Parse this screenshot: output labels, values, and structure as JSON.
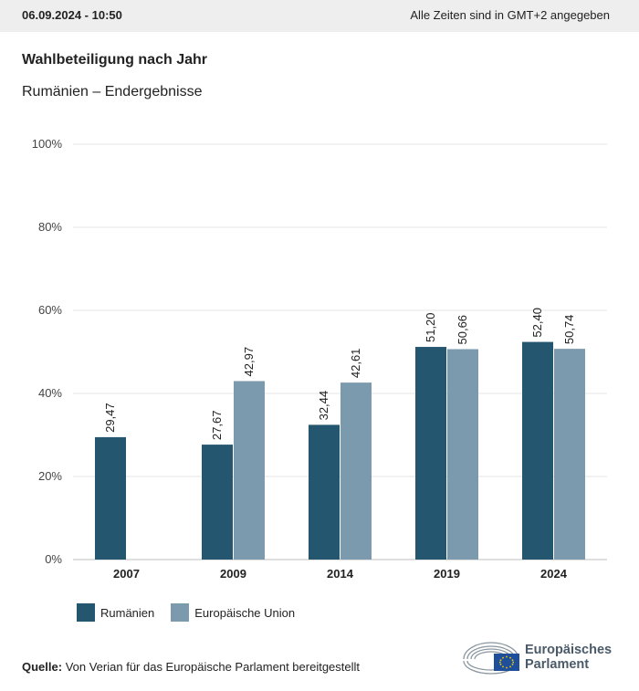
{
  "header": {
    "date": "06.09.2024 - 10:50",
    "timezone_note": "Alle Zeiten sind in GMT+2 angegeben"
  },
  "title": "Wahlbeteiligung nach Jahr",
  "subtitle": "Rumänien – Endergebnisse",
  "chart_data": {
    "type": "bar",
    "categories": [
      "2007",
      "2009",
      "2014",
      "2019",
      "2024"
    ],
    "series": [
      {
        "name": "Rumänien",
        "color": "#25566f",
        "values": [
          29.47,
          27.67,
          32.44,
          51.2,
          52.4
        ],
        "labels": [
          "29,47",
          "27,67",
          "32,44",
          "51,20",
          "52,40"
        ]
      },
      {
        "name": "Europäische Union",
        "color": "#7c9aad",
        "values": [
          null,
          42.97,
          42.61,
          50.66,
          50.74
        ],
        "labels": [
          "",
          "42,97",
          "42,61",
          "50,66",
          "50,74"
        ]
      }
    ],
    "ylim": [
      0,
      100
    ],
    "yticks": [
      0,
      20,
      40,
      60,
      80,
      100
    ],
    "ytick_labels": [
      "0%",
      "20%",
      "40%",
      "60%",
      "80%",
      "100%"
    ],
    "grid": true,
    "legend_position": "bottom-left"
  },
  "source": {
    "label": "Quelle:",
    "text": "Von Verian für das Europäische Parlament bereitgestellt"
  },
  "logo": {
    "line1": "Europäisches",
    "line2": "Parlament"
  }
}
